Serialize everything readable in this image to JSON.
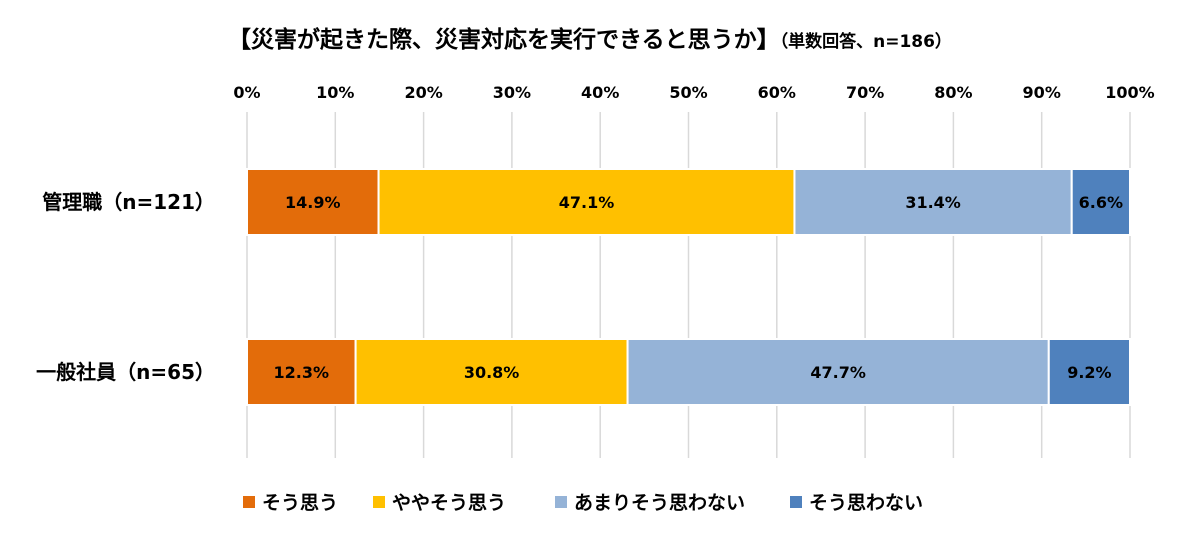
{
  "chart_data": {
    "type": "bar",
    "orientation": "horizontal",
    "stacked": true,
    "title": "【災害が起きた際、災害対応を実行できると思うか】",
    "subtitle": "（単数回答、n=186）",
    "categories": [
      "管理職（n=121）",
      "一般社員（n=65）"
    ],
    "series": [
      {
        "name": "そう思う",
        "color": "#E36C0A",
        "values": [
          14.9,
          12.3
        ],
        "labels": [
          "14.9%",
          "12.3%"
        ]
      },
      {
        "name": "ややそう思う",
        "color": "#FFC000",
        "values": [
          47.1,
          30.8
        ],
        "labels": [
          "47.1%",
          "30.8%"
        ]
      },
      {
        "name": "あまりそう思わない",
        "color": "#95B3D7",
        "values": [
          31.4,
          47.7
        ],
        "labels": [
          "31.4%",
          "47.7%"
        ]
      },
      {
        "name": "そう思わない",
        "color": "#4F81BD",
        "values": [
          6.6,
          9.2
        ],
        "labels": [
          "6.6%",
          "9.2%"
        ]
      }
    ],
    "xlim": [
      0,
      100
    ],
    "xticks": [
      0,
      10,
      20,
      30,
      40,
      50,
      60,
      70,
      80,
      90,
      100
    ],
    "xtick_labels": [
      "0%",
      "10%",
      "20%",
      "30%",
      "40%",
      "50%",
      "60%",
      "70%",
      "80%",
      "90%",
      "100%"
    ],
    "xaxis_position": "top",
    "grid": true,
    "legend_position": "bottom"
  }
}
